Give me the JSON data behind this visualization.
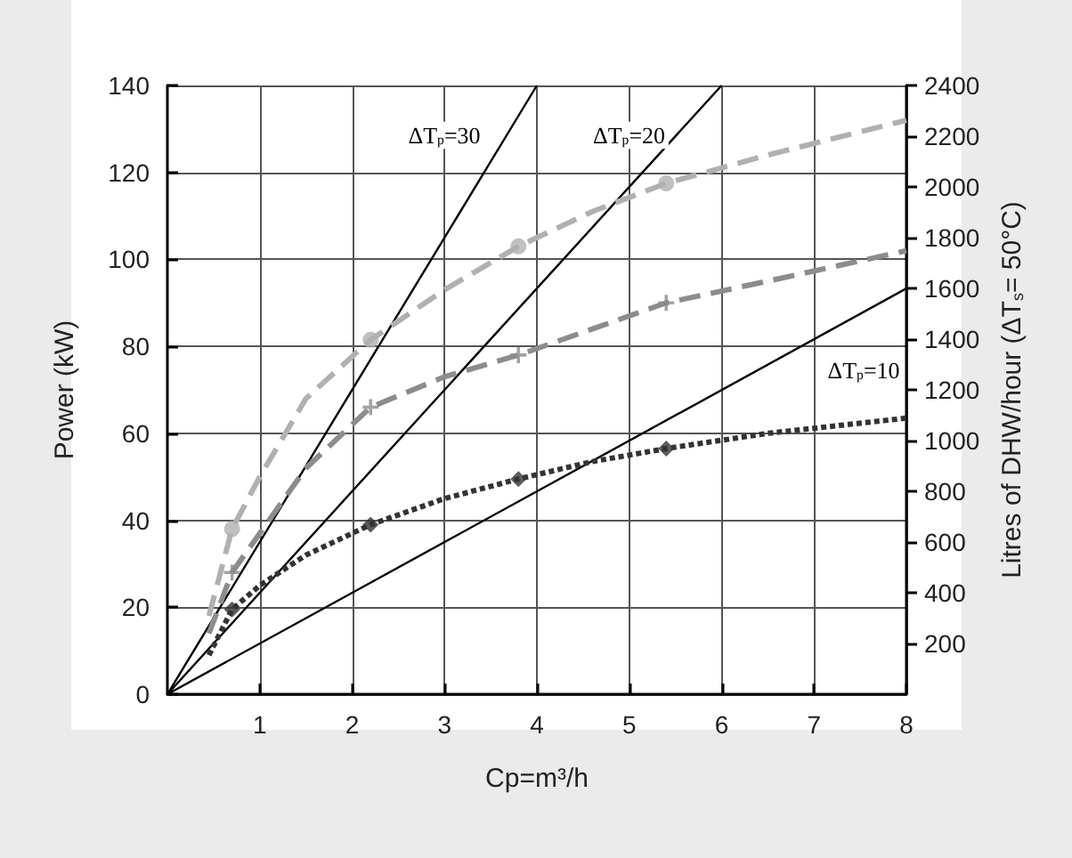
{
  "chart_data": {
    "type": "line",
    "xlabel": "Cp=m³/h",
    "ylabel": "Power (kW)",
    "y2label": "Litres of DHW/hour (ΔT$_{s}$= 50°C)",
    "xlim": [
      0,
      8
    ],
    "xticks": [
      1,
      2,
      3,
      4,
      5,
      6,
      7,
      8
    ],
    "ylim": [
      0,
      140
    ],
    "yticks": [
      0,
      20,
      40,
      60,
      80,
      100,
      120,
      140
    ],
    "y2lim": [
      0,
      2400
    ],
    "y2ticks": [
      200,
      400,
      600,
      800,
      1000,
      1200,
      1400,
      1600,
      1800,
      2000,
      2200,
      2400
    ],
    "grid": true,
    "series": [
      {
        "color": "#000000",
        "line_style": "solid",
        "marker": "none",
        "x": [
          0,
          4
        ],
        "values": [
          0,
          140
        ]
      },
      {
        "color": "#000000",
        "line_style": "solid",
        "marker": "none",
        "x": [
          0,
          6
        ],
        "values": [
          0,
          140
        ]
      },
      {
        "color": "#000000",
        "line_style": "solid",
        "marker": "none",
        "x": [
          0,
          8
        ],
        "values": [
          0,
          93.3
        ]
      },
      {
        "color": "#b0b0b0",
        "line_style": "dashed",
        "marker": "none",
        "x": [
          0.45,
          0.7,
          1,
          1.5,
          2.2,
          3,
          3.8,
          4.6,
          5.4,
          6.5,
          8
        ],
        "values": [
          18,
          38,
          50,
          68,
          81.5,
          93,
          103,
          111,
          117.5,
          124,
          132
        ]
      },
      {
        "type": "scatter",
        "color": "#b0b0b0",
        "marker": "circle",
        "x": [
          0.7,
          2.2,
          3.8,
          5.4
        ],
        "values": [
          38,
          81.5,
          103,
          117.5
        ]
      },
      {
        "color": "#8c8c8c",
        "line_style": "dashed",
        "marker": "none",
        "x": [
          0.45,
          0.7,
          1,
          1.5,
          2.2,
          3,
          3.8,
          4.6,
          5.4,
          6.5,
          8
        ],
        "values": [
          14,
          28,
          37,
          52,
          66,
          73,
          78,
          84,
          90,
          95,
          102
        ]
      },
      {
        "type": "scatter",
        "color": "#8c8c8c",
        "marker": "cross",
        "x": [
          0.7,
          2.2,
          3.8,
          5.4
        ],
        "values": [
          28,
          66,
          78,
          90
        ]
      },
      {
        "color": "#333333",
        "line_style": "dotted",
        "marker": "none",
        "x": [
          0.45,
          0.7,
          1,
          1.5,
          2.2,
          3,
          3.8,
          4.6,
          5.4,
          6.5,
          8
        ],
        "values": [
          9,
          19.5,
          25,
          32,
          39,
          45,
          49.5,
          53.5,
          56.5,
          60,
          63.5
        ]
      },
      {
        "type": "scatter",
        "color": "#333333",
        "marker": "diamond",
        "x": [
          0.7,
          2.2,
          3.8,
          5.4
        ],
        "values": [
          19.5,
          39,
          49.5,
          56.5
        ]
      }
    ],
    "annotations": [
      "ΔT$_{p}$=30",
      "ΔT$_{p}$=20",
      "ΔT$_{p}$=10"
    ]
  }
}
